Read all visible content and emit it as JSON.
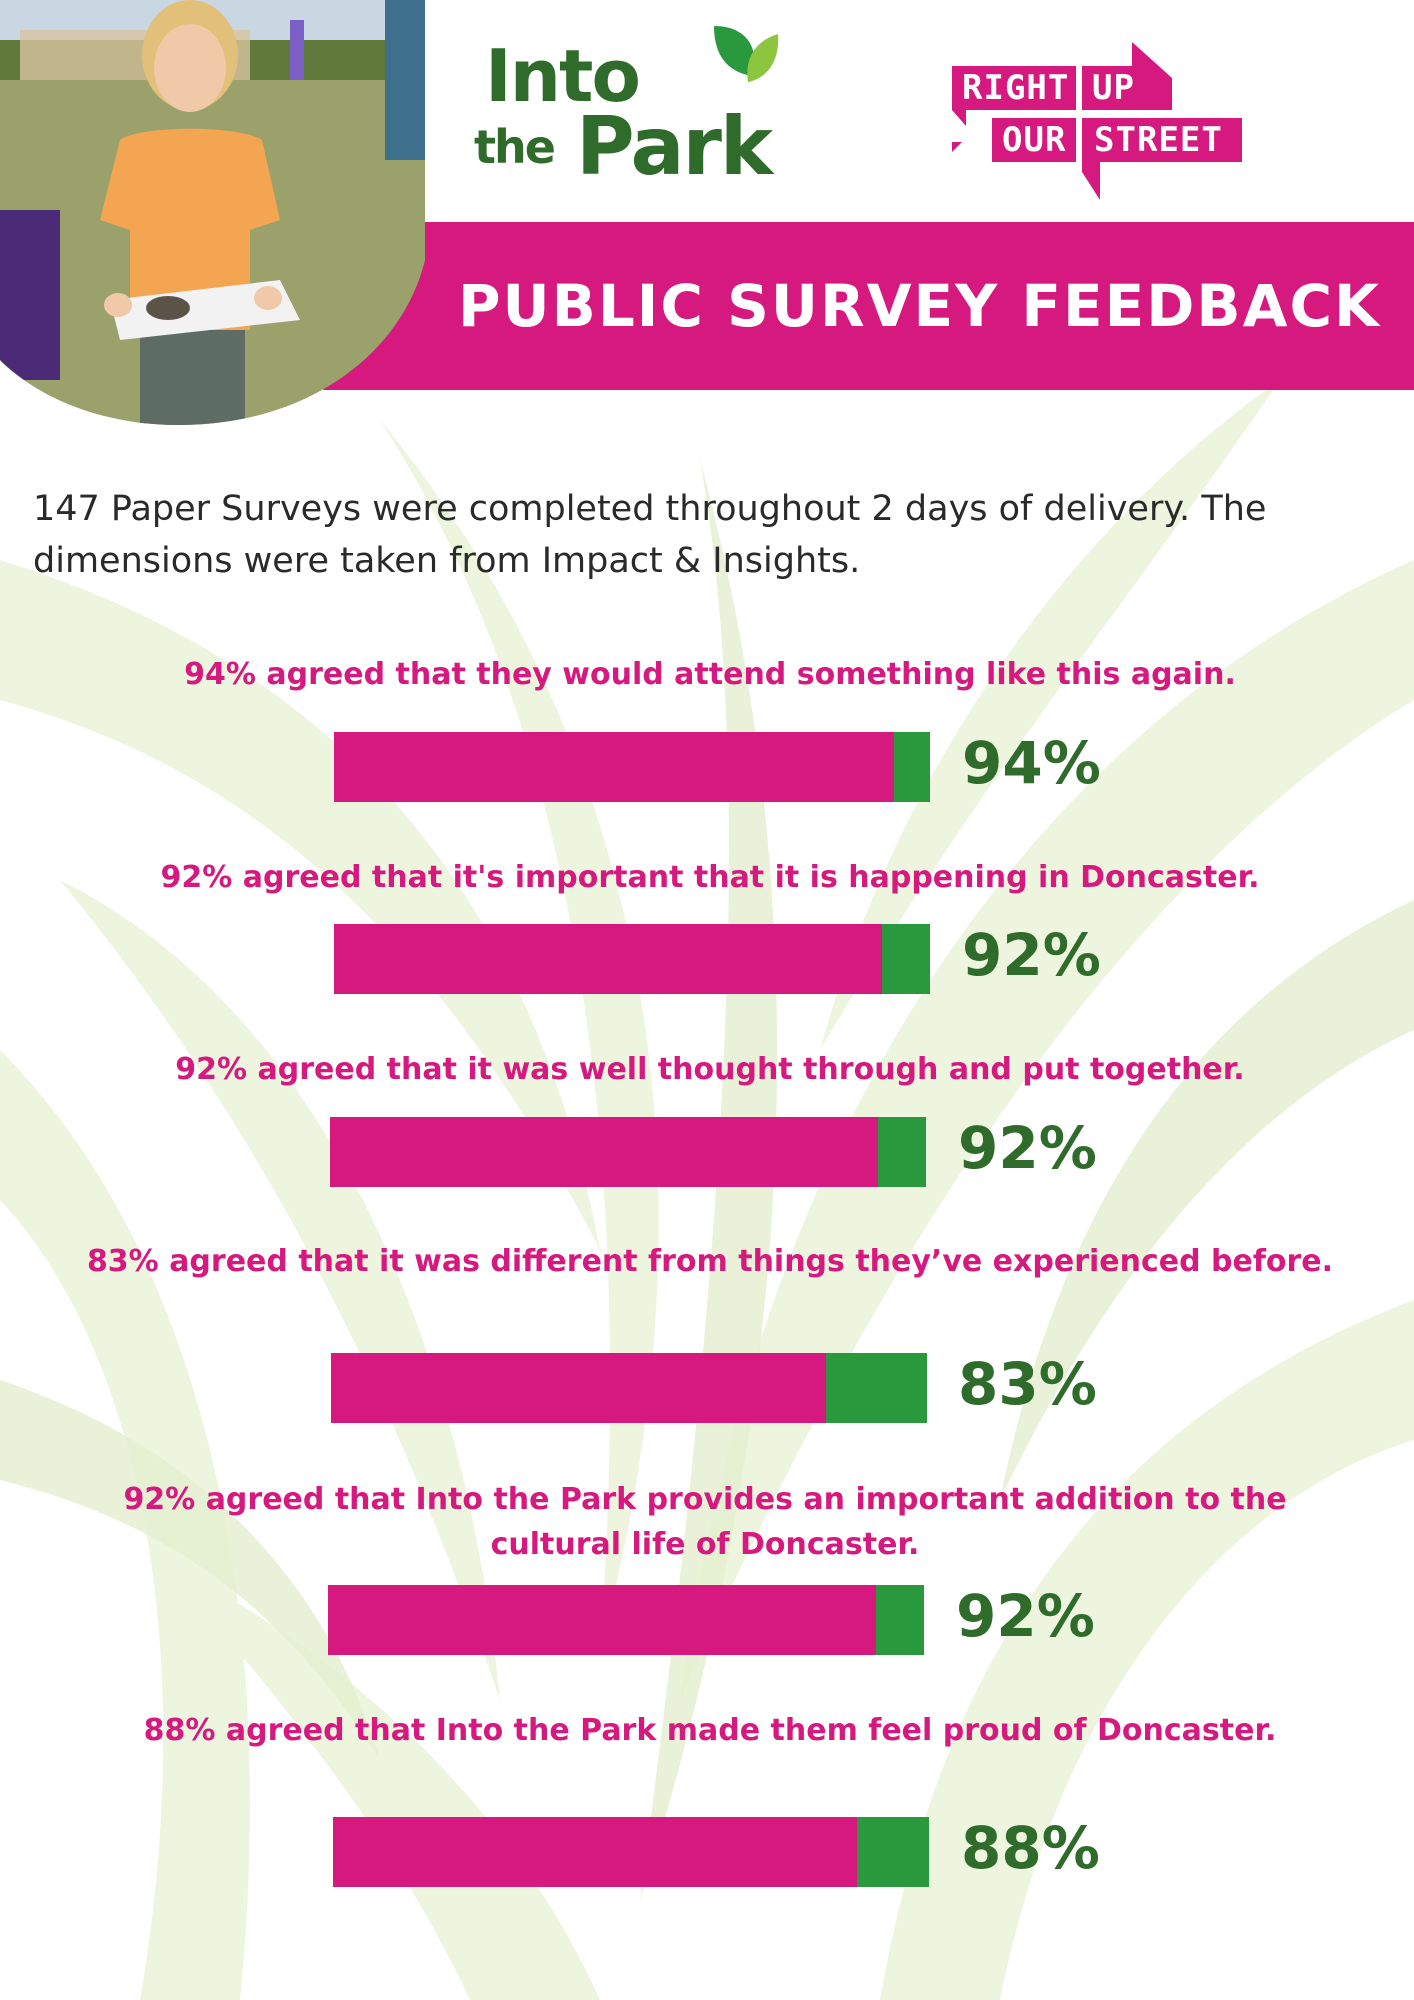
{
  "header": {
    "title": "PUBLIC SURVEY FEEDBACK",
    "logo_into_the_park": {
      "line1": "Into",
      "line2a": "the",
      "line2b": "Park"
    },
    "logo_right_up_our_street": {
      "w1": "RIGHT",
      "w2": "UP",
      "w3": "OUR",
      "w4": "STREET"
    }
  },
  "intro": {
    "text": "147 Paper Surveys were completed throughout 2 days of delivery. The dimensions were taken from Impact & Insights."
  },
  "colors": {
    "pink": "#d6197e",
    "green_bar": "#2a983c",
    "green_text": "#2f6b2a"
  },
  "icons": [
    "leaf-icon",
    "photo-girl-with-clay"
  ],
  "chart_data": {
    "type": "bar",
    "orientation": "horizontal",
    "ylim": [
      0,
      100
    ],
    "categories": [
      "94% agreed that they would attend something like this again.",
      "92% agreed that it's important that it is happening in Doncaster.",
      "92% agreed that it was well thought through and put together.",
      "83% agreed that it was different from things they’ve experienced before.",
      "92% agreed that Into the Park provides an important addition to the cultural life of Doncaster.",
      "88% agreed that Into the Park made them feel proud of Doncaster."
    ],
    "values": [
      94,
      92,
      92,
      83,
      92,
      88
    ],
    "value_labels": [
      "94%",
      "92%",
      "92%",
      "83%",
      "92%",
      "88%"
    ]
  }
}
